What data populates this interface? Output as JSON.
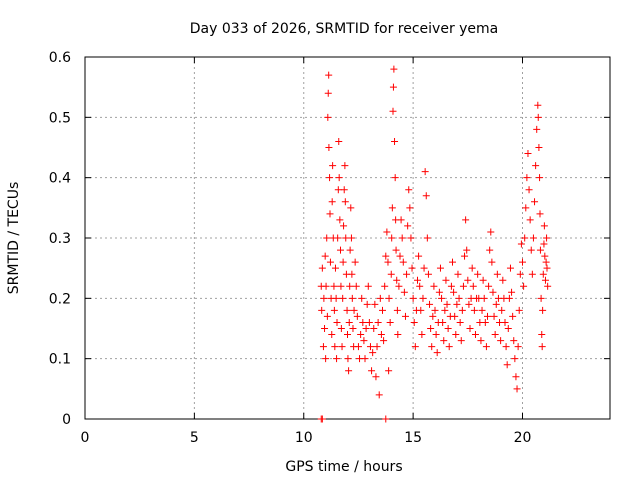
{
  "chart_data": {
    "type": "scatter",
    "title": "Day 033 of 2026, SRMTID for receiver yema",
    "xlabel": "GPS time / hours",
    "ylabel": "SRMTID / TECUs",
    "xlim": [
      0,
      24
    ],
    "ylim": [
      0,
      0.6
    ],
    "x_ticks": [
      0,
      5,
      10,
      15,
      20
    ],
    "y_ticks": [
      0,
      0.1,
      0.2,
      0.3,
      0.4,
      0.5,
      0.6
    ],
    "x_tick_labels": [
      "0",
      "5",
      "10",
      "15",
      "20"
    ],
    "y_tick_labels": [
      "0",
      "0.1",
      "0.2",
      "0.3",
      "0.4",
      "0.5",
      "0.6"
    ],
    "grid": true,
    "marker": "+",
    "color": "#ff0000",
    "series": [
      {
        "points": [
          [
            10.8,
            0.0
          ],
          [
            10.85,
            0.0
          ],
          [
            13.75,
            0.0
          ],
          [
            10.8,
            0.22
          ],
          [
            10.82,
            0.18
          ],
          [
            10.85,
            0.25
          ],
          [
            10.9,
            0.12
          ],
          [
            10.92,
            0.2
          ],
          [
            10.95,
            0.15
          ],
          [
            10.98,
            0.27
          ],
          [
            11.0,
            0.1
          ],
          [
            11.02,
            0.22
          ],
          [
            11.05,
            0.3
          ],
          [
            11.08,
            0.17
          ],
          [
            11.1,
            0.5
          ],
          [
            11.12,
            0.54
          ],
          [
            11.14,
            0.57
          ],
          [
            11.15,
            0.45
          ],
          [
            11.18,
            0.4
          ],
          [
            11.2,
            0.34
          ],
          [
            11.22,
            0.26
          ],
          [
            11.25,
            0.2
          ],
          [
            11.28,
            0.14
          ],
          [
            11.3,
            0.36
          ],
          [
            11.32,
            0.42
          ],
          [
            11.35,
            0.3
          ],
          [
            11.38,
            0.22
          ],
          [
            11.4,
            0.18
          ],
          [
            11.42,
            0.12
          ],
          [
            11.45,
            0.25
          ],
          [
            11.48,
            0.2
          ],
          [
            11.5,
            0.1
          ],
          [
            11.52,
            0.16
          ],
          [
            11.55,
            0.3
          ],
          [
            11.58,
            0.38
          ],
          [
            11.6,
            0.46
          ],
          [
            11.62,
            0.4
          ],
          [
            11.65,
            0.33
          ],
          [
            11.68,
            0.28
          ],
          [
            11.7,
            0.22
          ],
          [
            11.72,
            0.15
          ],
          [
            11.75,
            0.12
          ],
          [
            11.78,
            0.2
          ],
          [
            11.8,
            0.26
          ],
          [
            11.82,
            0.32
          ],
          [
            11.85,
            0.38
          ],
          [
            11.88,
            0.42
          ],
          [
            11.9,
            0.36
          ],
          [
            11.92,
            0.3
          ],
          [
            11.95,
            0.24
          ],
          [
            11.98,
            0.18
          ],
          [
            12.0,
            0.14
          ],
          [
            12.02,
            0.1
          ],
          [
            12.05,
            0.08
          ],
          [
            12.08,
            0.16
          ],
          [
            12.1,
            0.22
          ],
          [
            12.12,
            0.28
          ],
          [
            12.15,
            0.35
          ],
          [
            12.18,
            0.3
          ],
          [
            12.2,
            0.24
          ],
          [
            12.22,
            0.2
          ],
          [
            12.25,
            0.15
          ],
          [
            12.28,
            0.12
          ],
          [
            12.3,
            0.18
          ],
          [
            12.35,
            0.26
          ],
          [
            12.4,
            0.22
          ],
          [
            12.45,
            0.17
          ],
          [
            12.5,
            0.12
          ],
          [
            12.55,
            0.1
          ],
          [
            12.6,
            0.14
          ],
          [
            12.65,
            0.2
          ],
          [
            12.7,
            0.16
          ],
          [
            12.75,
            0.13
          ],
          [
            12.8,
            0.1
          ],
          [
            12.85,
            0.15
          ],
          [
            12.9,
            0.19
          ],
          [
            12.95,
            0.22
          ],
          [
            13.0,
            0.16
          ],
          [
            13.05,
            0.12
          ],
          [
            13.1,
            0.08
          ],
          [
            13.15,
            0.11
          ],
          [
            13.2,
            0.15
          ],
          [
            13.25,
            0.19
          ],
          [
            13.3,
            0.07
          ],
          [
            13.35,
            0.12
          ],
          [
            13.4,
            0.16
          ],
          [
            13.45,
            0.04
          ],
          [
            13.5,
            0.2
          ],
          [
            13.55,
            0.14
          ],
          [
            13.6,
            0.18
          ],
          [
            13.65,
            0.13
          ],
          [
            13.7,
            0.22
          ],
          [
            13.75,
            0.27
          ],
          [
            13.8,
            0.31
          ],
          [
            13.85,
            0.26
          ],
          [
            13.88,
            0.08
          ],
          [
            13.9,
            0.2
          ],
          [
            13.95,
            0.16
          ],
          [
            14.0,
            0.24
          ],
          [
            14.02,
            0.3
          ],
          [
            14.05,
            0.35
          ],
          [
            14.08,
            0.51
          ],
          [
            14.1,
            0.55
          ],
          [
            14.12,
            0.58
          ],
          [
            14.15,
            0.46
          ],
          [
            14.18,
            0.4
          ],
          [
            14.2,
            0.33
          ],
          [
            14.22,
            0.28
          ],
          [
            14.25,
            0.23
          ],
          [
            14.28,
            0.18
          ],
          [
            14.3,
            0.14
          ],
          [
            14.35,
            0.22
          ],
          [
            14.4,
            0.27
          ],
          [
            14.45,
            0.33
          ],
          [
            14.5,
            0.3
          ],
          [
            14.55,
            0.26
          ],
          [
            14.6,
            0.21
          ],
          [
            14.65,
            0.17
          ],
          [
            14.7,
            0.24
          ],
          [
            14.75,
            0.32
          ],
          [
            14.8,
            0.38
          ],
          [
            14.85,
            0.35
          ],
          [
            14.9,
            0.3
          ],
          [
            14.95,
            0.25
          ],
          [
            15.0,
            0.2
          ],
          [
            15.05,
            0.16
          ],
          [
            15.1,
            0.12
          ],
          [
            15.15,
            0.18
          ],
          [
            15.2,
            0.23
          ],
          [
            15.25,
            0.27
          ],
          [
            15.3,
            0.22
          ],
          [
            15.35,
            0.18
          ],
          [
            15.4,
            0.14
          ],
          [
            15.45,
            0.2
          ],
          [
            15.5,
            0.25
          ],
          [
            15.55,
            0.41
          ],
          [
            15.6,
            0.37
          ],
          [
            15.65,
            0.3
          ],
          [
            15.7,
            0.24
          ],
          [
            15.75,
            0.19
          ],
          [
            15.8,
            0.15
          ],
          [
            15.85,
            0.12
          ],
          [
            15.9,
            0.17
          ],
          [
            15.95,
            0.22
          ],
          [
            16.0,
            0.18
          ],
          [
            16.05,
            0.14
          ],
          [
            16.1,
            0.11
          ],
          [
            16.15,
            0.16
          ],
          [
            16.2,
            0.21
          ],
          [
            16.25,
            0.25
          ],
          [
            16.3,
            0.2
          ],
          [
            16.35,
            0.16
          ],
          [
            16.4,
            0.13
          ],
          [
            16.45,
            0.18
          ],
          [
            16.5,
            0.23
          ],
          [
            16.55,
            0.19
          ],
          [
            16.6,
            0.15
          ],
          [
            16.65,
            0.12
          ],
          [
            16.7,
            0.17
          ],
          [
            16.75,
            0.22
          ],
          [
            16.8,
            0.26
          ],
          [
            16.85,
            0.21
          ],
          [
            16.9,
            0.17
          ],
          [
            16.95,
            0.14
          ],
          [
            17.0,
            0.19
          ],
          [
            17.05,
            0.24
          ],
          [
            17.1,
            0.2
          ],
          [
            17.15,
            0.16
          ],
          [
            17.2,
            0.13
          ],
          [
            17.25,
            0.18
          ],
          [
            17.3,
            0.22
          ],
          [
            17.35,
            0.27
          ],
          [
            17.4,
            0.33
          ],
          [
            17.45,
            0.28
          ],
          [
            17.5,
            0.23
          ],
          [
            17.55,
            0.19
          ],
          [
            17.6,
            0.15
          ],
          [
            17.65,
            0.2
          ],
          [
            17.7,
            0.25
          ],
          [
            17.75,
            0.22
          ],
          [
            17.8,
            0.18
          ],
          [
            17.85,
            0.14
          ],
          [
            17.9,
            0.2
          ],
          [
            17.95,
            0.24
          ],
          [
            18.0,
            0.2
          ],
          [
            18.05,
            0.16
          ],
          [
            18.1,
            0.13
          ],
          [
            18.15,
            0.18
          ],
          [
            18.2,
            0.23
          ],
          [
            18.25,
            0.2
          ],
          [
            18.3,
            0.16
          ],
          [
            18.35,
            0.12
          ],
          [
            18.4,
            0.17
          ],
          [
            18.45,
            0.22
          ],
          [
            18.5,
            0.28
          ],
          [
            18.55,
            0.31
          ],
          [
            18.6,
            0.26
          ],
          [
            18.65,
            0.21
          ],
          [
            18.7,
            0.17
          ],
          [
            18.75,
            0.14
          ],
          [
            18.8,
            0.19
          ],
          [
            18.85,
            0.24
          ],
          [
            18.9,
            0.2
          ],
          [
            18.95,
            0.16
          ],
          [
            19.0,
            0.13
          ],
          [
            19.05,
            0.18
          ],
          [
            19.1,
            0.23
          ],
          [
            19.15,
            0.2
          ],
          [
            19.2,
            0.16
          ],
          [
            19.25,
            0.12
          ],
          [
            19.3,
            0.09
          ],
          [
            19.35,
            0.15
          ],
          [
            19.4,
            0.2
          ],
          [
            19.45,
            0.25
          ],
          [
            19.5,
            0.21
          ],
          [
            19.55,
            0.17
          ],
          [
            19.6,
            0.13
          ],
          [
            19.65,
            0.1
          ],
          [
            19.7,
            0.07
          ],
          [
            19.75,
            0.05
          ],
          [
            19.8,
            0.12
          ],
          [
            19.85,
            0.18
          ],
          [
            19.9,
            0.24
          ],
          [
            19.95,
            0.29
          ],
          [
            20.0,
            0.26
          ],
          [
            20.05,
            0.22
          ],
          [
            20.1,
            0.3
          ],
          [
            20.15,
            0.35
          ],
          [
            20.2,
            0.4
          ],
          [
            20.25,
            0.44
          ],
          [
            20.3,
            0.38
          ],
          [
            20.35,
            0.33
          ],
          [
            20.4,
            0.28
          ],
          [
            20.45,
            0.24
          ],
          [
            20.5,
            0.3
          ],
          [
            20.55,
            0.36
          ],
          [
            20.6,
            0.42
          ],
          [
            20.65,
            0.48
          ],
          [
            20.7,
            0.52
          ],
          [
            20.72,
            0.5
          ],
          [
            20.75,
            0.45
          ],
          [
            20.78,
            0.4
          ],
          [
            20.8,
            0.34
          ],
          [
            20.82,
            0.28
          ],
          [
            20.85,
            0.2
          ],
          [
            20.88,
            0.14
          ],
          [
            20.9,
            0.12
          ],
          [
            20.92,
            0.18
          ],
          [
            20.95,
            0.24
          ],
          [
            20.98,
            0.29
          ],
          [
            21.0,
            0.32
          ],
          [
            21.02,
            0.27
          ],
          [
            21.05,
            0.23
          ],
          [
            21.08,
            0.26
          ],
          [
            21.1,
            0.3
          ],
          [
            21.12,
            0.25
          ],
          [
            21.15,
            0.22
          ]
        ]
      }
    ]
  }
}
